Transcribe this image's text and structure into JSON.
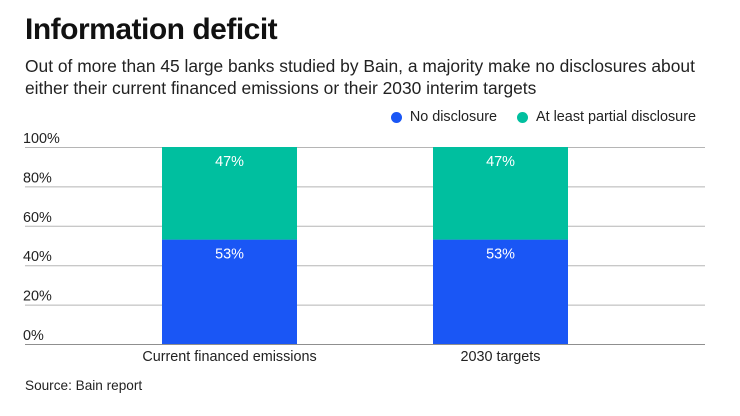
{
  "header": {
    "title": "Information deficit",
    "subtitle": "Out of more than 45 large banks studied by Bain, a majority make no disclosures about either their current financed emissions or their 2030 interim targets"
  },
  "footer": {
    "source": "Source: Bain report"
  },
  "chart_data": {
    "type": "bar",
    "stacked": true,
    "title": "Information deficit",
    "subtitle": "Out of more than 45 large banks studied by Bain, a majority make no disclosures about either their current financed emissions or their 2030 interim targets",
    "categories": [
      "Current financed emissions",
      "2030 targets"
    ],
    "series": [
      {
        "name": "No disclosure",
        "color": "#1a56f5",
        "values": [
          53,
          53
        ],
        "labels": [
          "53%",
          "53%"
        ]
      },
      {
        "name": "At least partial disclosure",
        "color": "#00bf9f",
        "values": [
          47,
          47
        ],
        "labels": [
          "47%",
          "47%"
        ]
      }
    ],
    "xlabel": "",
    "ylabel": "",
    "ylim": [
      0,
      100
    ],
    "yticks": [
      0,
      20,
      40,
      60,
      80,
      100
    ],
    "ytick_labels": [
      "0%",
      "20%",
      "40%",
      "60%",
      "80%",
      "100%"
    ],
    "grid": true,
    "legend_position": "top-right",
    "gridline_color": "#b5b5b5",
    "source": "Source: Bain report"
  }
}
